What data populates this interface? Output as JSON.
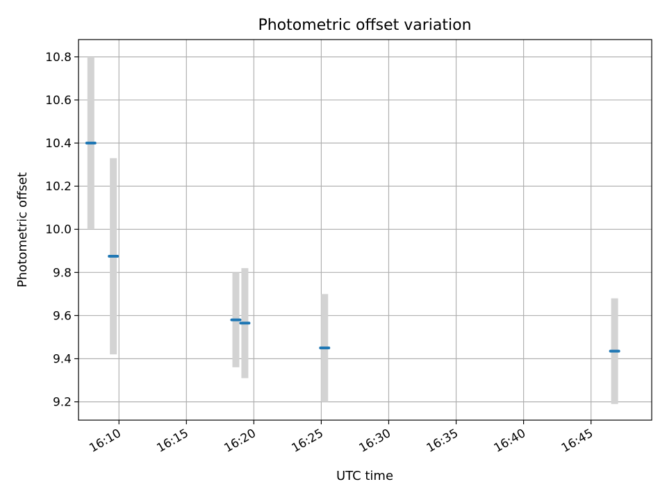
{
  "chart_data": {
    "type": "scatter",
    "title": "Photometric offset variation",
    "xlabel": "UTC time",
    "ylabel": "Photometric offset",
    "grid": true,
    "x_axis_kind": "time",
    "xlim": [
      "16:07:00",
      "16:49:30"
    ],
    "ylim": [
      9.115,
      10.88
    ],
    "x_ticks": [
      "16:10",
      "16:15",
      "16:20",
      "16:25",
      "16:30",
      "16:35",
      "16:40",
      "16:45"
    ],
    "y_ticks": [
      "9.2",
      "9.4",
      "9.6",
      "9.8",
      "10.0",
      "10.2",
      "10.4",
      "10.6",
      "10.8"
    ],
    "series": [
      {
        "marker_color": "#1f77b4",
        "errorbar_color": "#d3d3d3",
        "points": [
          {
            "x": "16:07:55",
            "y": 10.4,
            "err_low": 10.0,
            "err_high": 10.8
          },
          {
            "x": "16:09:35",
            "y": 9.875,
            "err_low": 9.42,
            "err_high": 10.33
          },
          {
            "x": "16:18:40",
            "y": 9.58,
            "err_low": 9.36,
            "err_high": 9.8
          },
          {
            "x": "16:19:20",
            "y": 9.565,
            "err_low": 9.31,
            "err_high": 9.82
          },
          {
            "x": "16:25:15",
            "y": 9.45,
            "err_low": 9.2,
            "err_high": 9.7
          },
          {
            "x": "16:46:45",
            "y": 9.435,
            "err_low": 9.19,
            "err_high": 9.68
          }
        ]
      }
    ]
  }
}
